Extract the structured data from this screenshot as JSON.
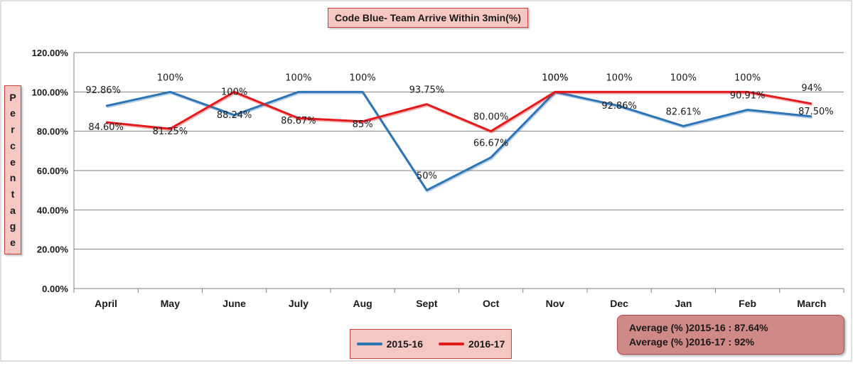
{
  "chart_data": {
    "type": "line",
    "title": "Code Blue- Team Arrive  Within 3min(%)",
    "ylabel": "Percentage",
    "xlabel": "",
    "categories": [
      "April",
      "May",
      "June",
      "July",
      "Aug",
      "Sept",
      "Oct",
      "Nov",
      "Dec",
      "Jan",
      "Feb",
      "March"
    ],
    "ylim": [
      0,
      120
    ],
    "yticks": [
      "0.00%",
      "20.00%",
      "40.00%",
      "60.00%",
      "80.00%",
      "100.00%",
      "120.00%"
    ],
    "grid": true,
    "legend_position": "bottom",
    "series": [
      {
        "name": "2015-16",
        "color": "#2e75b6",
        "values": [
          92.86,
          100,
          88.24,
          100,
          100,
          50,
          66.67,
          100,
          92.86,
          82.61,
          90.91,
          87.5
        ],
        "labels": [
          "92.86%",
          "100%",
          "88.24%",
          "100%",
          "100%",
          "50%",
          "66.67%",
          "100%",
          "92.86%",
          "82.61%",
          "90.91%",
          "87.50%"
        ]
      },
      {
        "name": "2016-17",
        "color": "#e31a1c",
        "values": [
          84.6,
          81.25,
          100,
          86.67,
          85,
          93.75,
          80,
          100,
          100,
          100,
          100,
          94
        ],
        "labels": [
          "84.60%",
          "81.25%",
          "100%",
          "86.67%",
          "85%",
          "93.75%",
          "80.00%",
          "100%",
          "100%",
          "100%",
          "100%",
          "94%"
        ]
      }
    ],
    "annotations": [
      "Average (% )2015-16 :  87.64%",
      "Average (% )2016-17  :  92%"
    ]
  }
}
